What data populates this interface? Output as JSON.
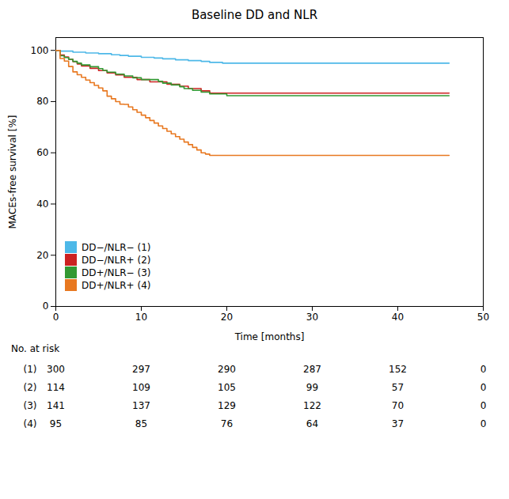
{
  "chart_data": {
    "type": "step",
    "title": "Baseline DD and NLR",
    "xlabel": "Time [months]",
    "ylabel": "MACEs-free survival [%]",
    "xlim": [
      0,
      50
    ],
    "ylim": [
      0,
      105
    ],
    "xticks": [
      0,
      10,
      20,
      30,
      40,
      50
    ],
    "yticks": [
      0,
      20,
      40,
      60,
      80,
      100
    ],
    "grid": false,
    "legend": "lower left",
    "x": [
      0,
      0.5,
      1,
      1.5,
      2,
      2.5,
      3,
      3.5,
      4,
      4.5,
      5,
      5.5,
      6,
      6.5,
      7,
      7.5,
      8,
      8.5,
      9,
      9.5,
      10,
      10.5,
      11,
      11.5,
      12,
      12.5,
      13,
      13.5,
      14,
      14.5,
      15,
      15.5,
      16,
      16.5,
      17,
      17.5,
      18,
      18.5,
      19,
      19.5,
      20,
      20.5,
      21,
      21.5,
      22,
      22.5,
      23,
      23.5,
      24,
      24.5,
      25,
      25.5,
      26,
      26.5,
      27,
      27.5,
      28,
      28.5,
      29,
      29.5,
      30,
      30.5,
      31,
      31.5,
      32,
      32.5,
      33,
      33.5,
      34,
      34.5,
      35,
      35.5,
      36,
      36.5,
      37,
      37.5,
      38,
      38.5,
      39,
      39.5,
      40,
      40.5,
      41,
      41.5,
      42,
      42.5,
      43,
      43.5,
      44,
      44.5,
      45,
      45.5,
      46
    ],
    "series": [
      {
        "name": "DD−/NLR− (1)",
        "color": "#4db8e8",
        "values": [
          100,
          99.7,
          99.7,
          99.7,
          99.3,
          99.3,
          99.3,
          99.0,
          99.0,
          99.0,
          98.7,
          98.7,
          98.7,
          98.3,
          98.3,
          98.0,
          98.0,
          97.7,
          97.7,
          97.7,
          97.3,
          97.3,
          97.3,
          97.0,
          97.0,
          96.7,
          96.7,
          96.7,
          96.3,
          96.3,
          96.3,
          96.0,
          96.0,
          96.0,
          95.7,
          95.7,
          95.3,
          95.3,
          95.3,
          95.0,
          95.0,
          95.0,
          95.0,
          95.0,
          95.0,
          95.0,
          95.0,
          95.0,
          95.0,
          95.0,
          95.0,
          95.0,
          95.0,
          95.0,
          95.0,
          95.0,
          95.0,
          95.0,
          95.0,
          95.0,
          95.0,
          95.0,
          95.0,
          95.0,
          95.0,
          95.0,
          95.0,
          95.0,
          95.0,
          95.0,
          95.0,
          95.0,
          95.0,
          95.0,
          95.0,
          95.0,
          95.0,
          95.0,
          95.0,
          95.0,
          95.0,
          95.0,
          95.0,
          95.0,
          95.0,
          95.0,
          95.0,
          95.0,
          95.0,
          95.0,
          95.0,
          95.0,
          95.0
        ]
      },
      {
        "name": "DD−/NLR+ (2)",
        "color": "#cc2222",
        "values": [
          100,
          98.2,
          97.4,
          96.5,
          95.6,
          94.7,
          93.9,
          93.9,
          93.0,
          93.0,
          92.1,
          92.1,
          91.2,
          91.2,
          90.4,
          90.4,
          89.5,
          89.5,
          89.5,
          88.6,
          88.6,
          88.6,
          87.7,
          87.7,
          87.7,
          87.7,
          86.8,
          86.8,
          86.8,
          86.0,
          86.0,
          85.1,
          85.1,
          85.1,
          84.2,
          84.2,
          83.3,
          83.3,
          83.3,
          83.3,
          83.3,
          83.3,
          83.3,
          83.3,
          83.3,
          83.3,
          83.3,
          83.3,
          83.3,
          83.3,
          83.3,
          83.3,
          83.3,
          83.3,
          83.3,
          83.3,
          83.3,
          83.3,
          83.3,
          83.3,
          83.3,
          83.3,
          83.3,
          83.3,
          83.3,
          83.3,
          83.3,
          83.3,
          83.3,
          83.3,
          83.3,
          83.3,
          83.3,
          83.3,
          83.3,
          83.3,
          83.3,
          83.3,
          83.3,
          83.3,
          83.3,
          83.3,
          83.3,
          83.3,
          83.3,
          83.3,
          83.3,
          83.3,
          83.3,
          83.3,
          83.3,
          83.3,
          83.3
        ]
      },
      {
        "name": "DD+/NLR− (3)",
        "color": "#339933",
        "values": [
          100,
          97.9,
          97.2,
          96.5,
          95.7,
          95.0,
          94.3,
          94.3,
          93.6,
          93.6,
          92.9,
          92.2,
          91.5,
          91.5,
          90.7,
          90.7,
          90.0,
          90.0,
          89.3,
          89.3,
          88.6,
          88.6,
          88.6,
          88.6,
          87.9,
          87.2,
          87.2,
          86.5,
          86.5,
          85.8,
          85.1,
          85.1,
          84.4,
          84.4,
          83.7,
          83.7,
          83.0,
          83.0,
          83.0,
          83.0,
          82.3,
          82.3,
          82.3,
          82.3,
          82.3,
          82.3,
          82.3,
          82.3,
          82.3,
          82.3,
          82.3,
          82.3,
          82.3,
          82.3,
          82.3,
          82.3,
          82.3,
          82.3,
          82.3,
          82.3,
          82.3,
          82.3,
          82.3,
          82.3,
          82.3,
          82.3,
          82.3,
          82.3,
          82.3,
          82.3,
          82.3,
          82.3,
          82.3,
          82.3,
          82.3,
          82.3,
          82.3,
          82.3,
          82.3,
          82.3,
          82.3,
          82.3,
          82.3,
          82.3,
          82.3,
          82.3,
          82.3,
          82.3,
          82.3,
          82.3,
          82.3,
          82.3,
          82.3
        ]
      },
      {
        "name": "DD+/NLR+ (4)",
        "color": "#e87820",
        "values": [
          100,
          96.8,
          95.8,
          93.7,
          91.6,
          90.5,
          89.5,
          88.4,
          87.4,
          86.3,
          85.3,
          84.2,
          82.1,
          81.1,
          80.0,
          79.0,
          78.9,
          77.9,
          76.8,
          75.8,
          74.7,
          73.7,
          72.6,
          71.6,
          70.5,
          69.5,
          68.4,
          67.4,
          66.3,
          65.3,
          64.2,
          63.2,
          62.1,
          61.1,
          60.0,
          59.5,
          59.0,
          59.0,
          59.0,
          59.0,
          59.0,
          59.0,
          59.0,
          59.0,
          59.0,
          59.0,
          59.0,
          59.0,
          59.0,
          59.0,
          59.0,
          59.0,
          59.0,
          59.0,
          59.0,
          59.0,
          59.0,
          59.0,
          59.0,
          59.0,
          59.0,
          59.0,
          59.0,
          59.0,
          59.0,
          59.0,
          59.0,
          59.0,
          59.0,
          59.0,
          59.0,
          59.0,
          59.0,
          59.0,
          59.0,
          59.0,
          59.0,
          59.0,
          59.0,
          59.0,
          59.0,
          59.0,
          59.0,
          59.0,
          59.0,
          59.0,
          59.0,
          59.0,
          59.0,
          59.0,
          59.0,
          59.0,
          59.0
        ]
      }
    ],
    "at_risk": {
      "label": "No. at risk",
      "times": [
        0,
        10,
        20,
        30,
        40,
        50
      ],
      "rows": [
        {
          "name": "(1)",
          "values": [
            300,
            297,
            290,
            287,
            152,
            0
          ]
        },
        {
          "name": "(2)",
          "values": [
            114,
            109,
            105,
            99,
            57,
            0
          ]
        },
        {
          "name": "(3)",
          "values": [
            141,
            137,
            129,
            122,
            70,
            0
          ]
        },
        {
          "name": "(4)",
          "values": [
            95,
            85,
            76,
            64,
            37,
            0
          ]
        }
      ]
    }
  }
}
